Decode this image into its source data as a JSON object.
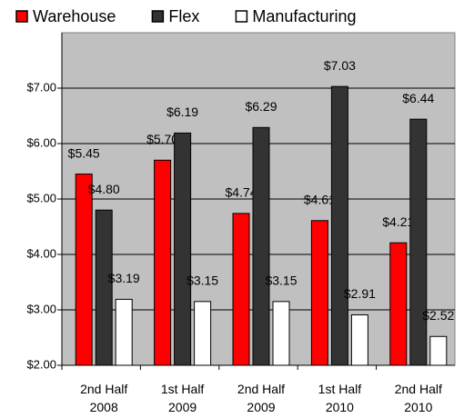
{
  "chart_data": {
    "type": "bar",
    "categories": [
      "2nd Half 2008",
      "1st Half 2009",
      "2nd Half 2009",
      "1st Half 2010",
      "2nd Half 2010"
    ],
    "series": [
      {
        "name": "Warehouse",
        "color": "#ff0000",
        "values": [
          5.45,
          5.7,
          4.74,
          4.61,
          4.21
        ],
        "value_labels": [
          "$5.45",
          "$5.70",
          "$4.74",
          "$4.61",
          "$4.21"
        ]
      },
      {
        "name": "Flex",
        "color": "#333333",
        "values": [
          4.8,
          6.19,
          6.29,
          7.03,
          6.44
        ],
        "value_labels": [
          "$4.80",
          "$6.19",
          "$6.29",
          "$7.03",
          "$6.44"
        ]
      },
      {
        "name": "Manufacturing",
        "color": "#ffffff",
        "values": [
          3.19,
          3.15,
          3.15,
          2.91,
          2.52
        ],
        "value_labels": [
          "$3.19",
          "$3.15",
          "$3.15",
          "$2.91",
          "$2.52"
        ]
      }
    ],
    "ylim": [
      2,
      8
    ],
    "yticks": [
      {
        "value": 2,
        "label": "$2.00"
      },
      {
        "value": 3,
        "label": "$3.00"
      },
      {
        "value": 4,
        "label": "$4.00"
      },
      {
        "value": 5,
        "label": "$5.00"
      },
      {
        "value": 6,
        "label": "$6.00"
      },
      {
        "value": 7,
        "label": "$7.00"
      }
    ],
    "grid": true,
    "legend": "top"
  }
}
